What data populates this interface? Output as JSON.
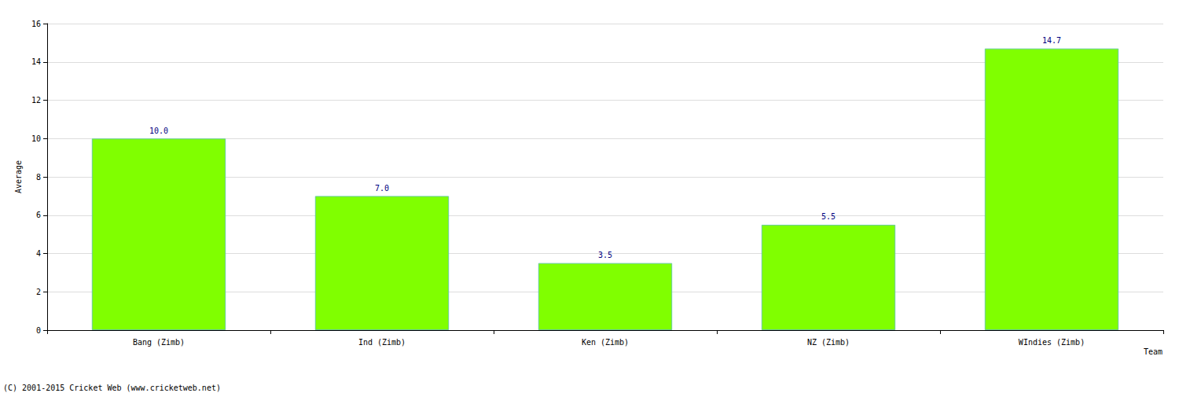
{
  "chart_data": {
    "type": "bar",
    "x_label": "Team",
    "y_label": "Average",
    "categories": [
      "Bang (Zimb)",
      "Ind (Zimb)",
      "Ken (Zimb)",
      "NZ (Zimb)",
      "WIndies (Zimb)"
    ],
    "values": [
      10.0,
      7.0,
      3.5,
      5.5,
      14.7
    ],
    "value_labels": [
      "10.0",
      "7.0",
      "3.5",
      "5.5",
      "14.7"
    ],
    "color": "#80ff00",
    "ylim": [
      0,
      16
    ],
    "yticks": [
      0,
      2,
      4,
      6,
      8,
      10,
      12,
      14,
      16
    ],
    "grid": true,
    "data_labels": true,
    "annotations": [
      "(C) 2001-2015 Cricket Web (www.cricketweb.net)"
    ]
  }
}
